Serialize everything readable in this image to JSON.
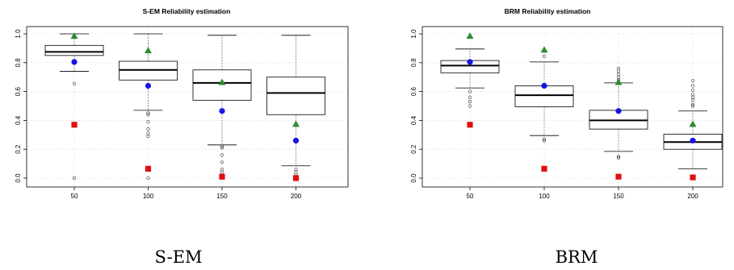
{
  "chart_data": [
    {
      "type": "box",
      "title": "S-EM Reliability estimation",
      "caption": "S-EM",
      "categories": [
        "50",
        "100",
        "150",
        "200"
      ],
      "ylim": [
        0,
        1.05
      ],
      "yticks": [
        "0.0",
        "0.2",
        "0.4",
        "0.6",
        "0.8",
        "1.0"
      ],
      "grid": true,
      "boxes": [
        {
          "whisker_low": 0.74,
          "q1": 0.85,
          "median": 0.875,
          "q3": 0.92,
          "whisker_high": 1.0,
          "outliers": [
            0.655,
            0.0
          ]
        },
        {
          "whisker_low": 0.47,
          "q1": 0.68,
          "median": 0.75,
          "q3": 0.81,
          "whisker_high": 1.0,
          "outliers": [
            0.45,
            0.44,
            0.39,
            0.34,
            0.31,
            0.29,
            0.0
          ]
        },
        {
          "whisker_low": 0.23,
          "q1": 0.54,
          "median": 0.66,
          "q3": 0.75,
          "whisker_high": 0.99,
          "outliers": [
            0.22,
            0.21,
            0.16,
            0.11,
            0.06,
            0.04,
            0.0
          ]
        },
        {
          "whisker_low": 0.085,
          "q1": 0.44,
          "median": 0.59,
          "q3": 0.7,
          "whisker_high": 0.99,
          "outliers": [
            0.06,
            0.04,
            0.02,
            0.01,
            0.0
          ]
        }
      ],
      "markers": [
        {
          "shape": "triangle",
          "color": "#2e8b2e",
          "values": [
            0.985,
            0.885,
            0.665,
            0.375
          ]
        },
        {
          "shape": "circle",
          "color": "#1515e6",
          "values": [
            0.805,
            0.64,
            0.465,
            0.26
          ]
        },
        {
          "shape": "square",
          "color": "#e01010",
          "values": [
            0.37,
            0.065,
            0.01,
            0.0
          ]
        }
      ]
    },
    {
      "type": "box",
      "title": "BRM Reliability estimation",
      "caption": "BRM",
      "categories": [
        "50",
        "100",
        "150",
        "200"
      ],
      "ylim": [
        0,
        1.05
      ],
      "yticks": [
        "0.0",
        "0.2",
        "0.4",
        "0.6",
        "0.8",
        "1.0"
      ],
      "grid": true,
      "boxes": [
        {
          "whisker_low": 0.625,
          "q1": 0.73,
          "median": 0.78,
          "q3": 0.815,
          "whisker_high": 0.895,
          "outliers": [
            0.6,
            0.56,
            0.53,
            0.5
          ]
        },
        {
          "whisker_low": 0.295,
          "q1": 0.495,
          "median": 0.575,
          "q3": 0.64,
          "whisker_high": 0.805,
          "outliers": [
            0.845,
            0.27,
            0.26
          ]
        },
        {
          "whisker_low": 0.185,
          "q1": 0.34,
          "median": 0.4,
          "q3": 0.47,
          "whisker_high": 0.66,
          "outliers": [
            0.76,
            0.74,
            0.72,
            0.7,
            0.68,
            0.15,
            0.14
          ]
        },
        {
          "whisker_low": 0.065,
          "q1": 0.2,
          "median": 0.25,
          "q3": 0.305,
          "whisker_high": 0.465,
          "outliers": [
            0.675,
            0.64,
            0.61,
            0.58,
            0.56,
            0.54,
            0.51,
            0.5
          ]
        }
      ],
      "markers": [
        {
          "shape": "triangle",
          "color": "#2e8b2e",
          "values": [
            0.985,
            0.89,
            0.665,
            0.375
          ]
        },
        {
          "shape": "circle",
          "color": "#1515e6",
          "values": [
            0.805,
            0.64,
            0.465,
            0.26
          ]
        },
        {
          "shape": "square",
          "color": "#e01010",
          "values": [
            0.37,
            0.065,
            0.01,
            0.005
          ]
        }
      ]
    }
  ]
}
